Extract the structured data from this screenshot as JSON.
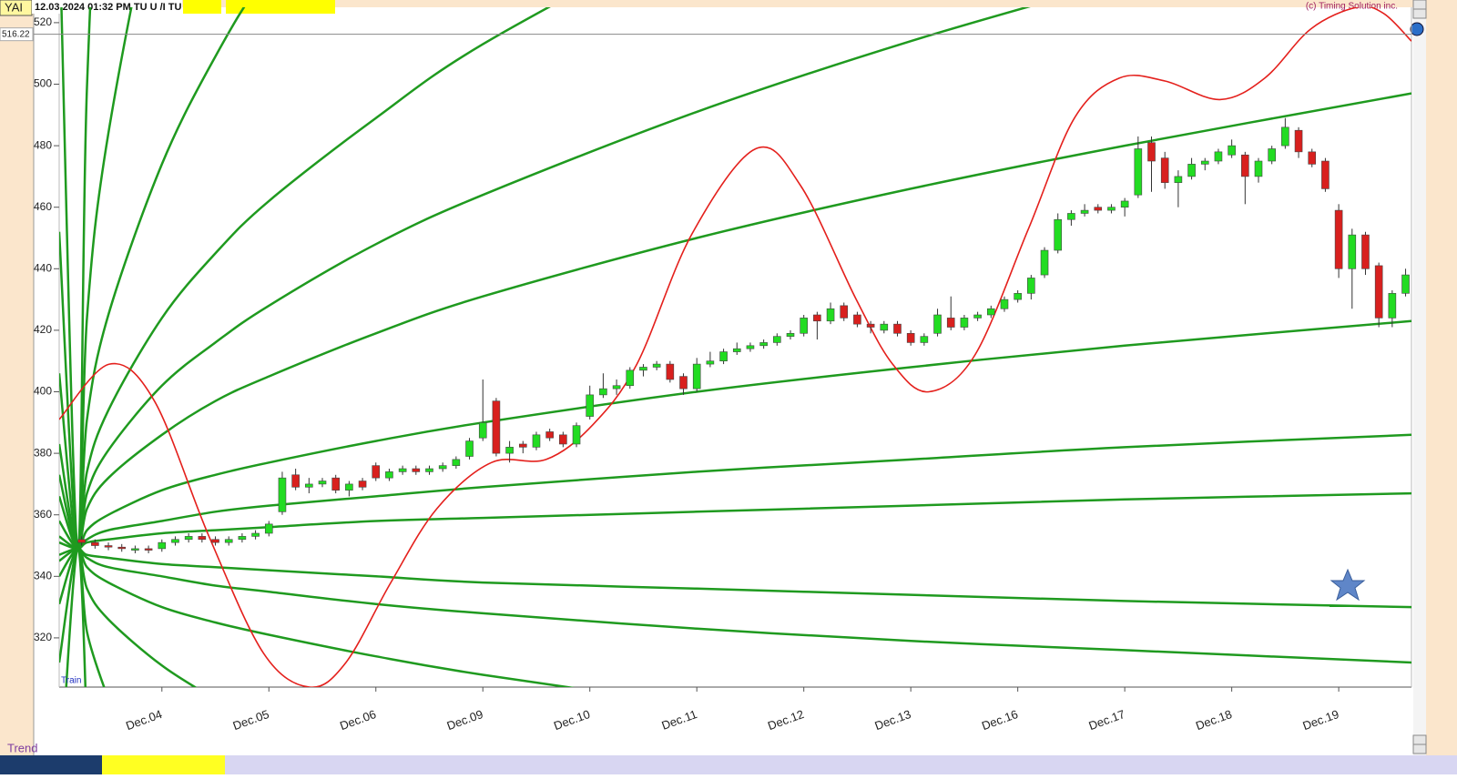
{
  "header": {
    "symbol": "YAI",
    "datetime": "12.03.2024  01:32 PM TU U /I TU",
    "copyright": "(c) Timing Solution inc."
  },
  "footer": {
    "tab": "Trend"
  },
  "chart_data": {
    "type": "candlestick",
    "annotation": "Train",
    "colors": {
      "up": "#22dc22",
      "down": "#d8201e",
      "fan": "#1f9a1f",
      "cycle": "#e4201c"
    },
    "xlim": [
      0.04,
      12.68
    ],
    "xticks": [
      {
        "value": 1,
        "label": "Dec.04"
      },
      {
        "value": 2,
        "label": "Dec.05"
      },
      {
        "value": 3,
        "label": "Dec.06"
      },
      {
        "value": 4,
        "label": "Dec.09"
      },
      {
        "value": 5,
        "label": "Dec.10"
      },
      {
        "value": 6,
        "label": "Dec.11"
      },
      {
        "value": 7,
        "label": "Dec.12"
      },
      {
        "value": 8,
        "label": "Dec.13"
      },
      {
        "value": 9,
        "label": "Dec.16"
      },
      {
        "value": 10,
        "label": "Dec.17"
      },
      {
        "value": 11,
        "label": "Dec.18"
      },
      {
        "value": 12,
        "label": "Dec.19"
      }
    ],
    "ylim": [
      304,
      525
    ],
    "yticks": [
      320,
      340,
      360,
      380,
      400,
      420,
      440,
      460,
      480,
      500,
      520
    ],
    "last_price": 516.22,
    "x": [
      0.25,
      0.375,
      0.5,
      0.625,
      0.75,
      0.875,
      1,
      1.125,
      1.25,
      1.375,
      1.5,
      1.625,
      1.75,
      1.875,
      2,
      2.125,
      2.25,
      2.375,
      2.5,
      2.625,
      2.75,
      2.875,
      3,
      3.125,
      3.25,
      3.375,
      3.5,
      3.625,
      3.75,
      3.875,
      4,
      4.125,
      4.25,
      4.375,
      4.5,
      4.625,
      4.75,
      4.875,
      5,
      5.125,
      5.25,
      5.375,
      5.5,
      5.625,
      5.75,
      5.875,
      6,
      6.125,
      6.25,
      6.375,
      6.5,
      6.625,
      6.75,
      6.875,
      7,
      7.125,
      7.25,
      7.375,
      7.5,
      7.625,
      7.75,
      7.875,
      8,
      8.125,
      8.25,
      8.375,
      8.5,
      8.625,
      8.75,
      8.875,
      9,
      9.125,
      9.25,
      9.375,
      9.5,
      9.625,
      9.75,
      9.875,
      10,
      10.125,
      10.25,
      10.375,
      10.5,
      10.625,
      10.75,
      10.875,
      11,
      11.125,
      11.25,
      11.375,
      11.5,
      11.625,
      11.75,
      11.875,
      12,
      12.125,
      12.25,
      12.375,
      12.5,
      12.625
    ],
    "open": [
      352,
      351,
      350,
      349.5,
      348.5,
      349,
      349,
      351,
      352,
      353,
      352,
      351,
      352,
      353,
      354,
      361,
      373,
      369,
      370,
      372,
      368,
      371,
      376,
      372,
      374,
      375,
      374,
      375,
      376,
      379,
      385,
      397,
      380,
      383,
      382,
      387,
      386,
      383,
      392,
      399,
      401,
      402,
      407,
      408,
      409,
      405,
      401,
      409,
      410,
      413,
      414,
      415,
      416,
      418,
      419,
      425,
      423,
      428,
      425,
      422,
      420,
      422,
      419,
      416,
      419,
      424,
      421,
      424,
      425,
      427,
      430,
      432,
      438,
      446,
      456,
      458,
      460,
      459,
      460,
      464,
      481,
      476,
      468,
      470,
      474,
      475,
      477,
      477,
      470,
      475,
      480,
      485,
      478,
      475,
      459,
      440,
      451,
      441,
      424,
      432
    ],
    "high": [
      353,
      352,
      351,
      350.5,
      350,
      350,
      352,
      353,
      354,
      354,
      353,
      353,
      354,
      355,
      358,
      374,
      375,
      372,
      372,
      373,
      371,
      372,
      377,
      375,
      376,
      376,
      376,
      377,
      379,
      385,
      404,
      398,
      384,
      384,
      387,
      388,
      387,
      390,
      402,
      406,
      404,
      408,
      409,
      410,
      410,
      406,
      411,
      413,
      414,
      416,
      416,
      417,
      419,
      420,
      425,
      426,
      429,
      429,
      426,
      423,
      423,
      423,
      420,
      419,
      427,
      431,
      425,
      426,
      428,
      431,
      433,
      438,
      447,
      458,
      459,
      461,
      461,
      461,
      463,
      483,
      483,
      478,
      472,
      476,
      476,
      479,
      482,
      478,
      476,
      480,
      489,
      486,
      479,
      476,
      461,
      453,
      452,
      442,
      433,
      440
    ],
    "low": [
      350,
      349,
      348.5,
      348,
      347.5,
      347.5,
      348,
      350,
      351,
      351,
      350,
      350,
      351,
      352,
      353,
      360,
      368,
      367,
      369,
      367,
      366,
      368,
      371,
      371,
      373,
      373,
      373,
      374,
      375,
      378,
      384,
      379,
      377,
      380,
      381,
      384,
      382,
      382,
      391,
      398,
      399,
      401,
      405,
      407,
      403,
      399,
      400,
      408,
      409,
      412,
      413,
      414,
      415,
      417,
      418,
      417,
      422,
      423,
      421,
      419,
      419,
      418,
      415,
      415,
      418,
      420,
      420,
      423,
      424,
      426,
      429,
      430,
      437,
      445,
      454,
      457,
      458,
      458,
      457,
      463,
      465,
      466,
      460,
      469,
      472,
      474,
      476,
      461,
      468,
      474,
      479,
      476,
      473,
      465,
      437,
      427,
      438,
      421,
      421,
      431
    ],
    "close": [
      351,
      350,
      349.5,
      349,
      349,
      348.5,
      351,
      352,
      353,
      352,
      351,
      352,
      353,
      354,
      357,
      372,
      369,
      370,
      371,
      368,
      370,
      369,
      372,
      374,
      375,
      374,
      375,
      376,
      378,
      384,
      390,
      380,
      382,
      382,
      386,
      385,
      383,
      389,
      399,
      401,
      402,
      407,
      408,
      409,
      404,
      401,
      409,
      410,
      413,
      414,
      415,
      416,
      418,
      419,
      424,
      423,
      427,
      424,
      422,
      421,
      422,
      419,
      416,
      418,
      425,
      421,
      424,
      425,
      427,
      430,
      432,
      437,
      446,
      456,
      458,
      459,
      459,
      460,
      462,
      479,
      475,
      468,
      470,
      474,
      475,
      478,
      480,
      470,
      475,
      479,
      486,
      478,
      474,
      466,
      440,
      451,
      440,
      424,
      432,
      438
    ],
    "fan": {
      "x": [
        0.04,
        0.21,
        0.3,
        0.5,
        1,
        1.5,
        2,
        3,
        4,
        6,
        8,
        10,
        12.68
      ],
      "lines": [
        [
          554,
          349,
          499,
          619,
          794,
          null,
          null,
          null,
          null,
          null,
          null,
          null,
          null
        ],
        [
          452,
          349,
          424,
          484,
          572,
          634,
          null,
          null,
          null,
          null,
          null,
          null,
          null
        ],
        [
          406,
          349,
          391,
          425,
          474,
          509,
          537,
          583,
          null,
          null,
          null,
          null,
          null
        ],
        [
          383,
          349,
          374,
          394,
          424,
          445,
          462,
          489,
          513,
          551,
          null,
          null,
          null
        ],
        [
          373,
          349,
          367,
          381,
          402,
          416,
          428,
          448,
          464,
          491,
          514,
          534,
          null
        ],
        [
          366,
          349,
          362,
          372,
          386,
          397,
          405,
          419,
          431,
          450,
          466,
          480,
          497
        ],
        [
          358,
          349,
          355,
          360,
          368,
          373,
          377,
          384,
          390,
          400,
          408,
          415,
          423
        ],
        [
          353,
          349,
          352,
          355,
          358,
          361,
          363,
          366,
          369,
          374,
          378,
          382,
          386
        ],
        [
          351,
          349,
          351,
          352,
          354,
          355,
          356,
          358,
          359,
          361,
          363,
          365,
          367
        ],
        [
          347,
          349,
          347,
          346,
          344,
          343,
          342,
          340,
          338,
          336,
          334,
          332,
          330
        ],
        [
          345,
          349,
          346,
          343,
          340,
          337,
          335,
          331,
          328,
          323,
          319,
          316,
          312
        ],
        [
          340,
          349,
          343,
          338,
          330,
          325,
          321,
          314,
          308,
          298,
          null,
          null,
          null
        ],
        [
          331,
          349,
          336,
          326,
          311,
          300,
          null,
          null,
          null,
          null,
          null,
          null,
          null
        ],
        [
          312,
          349,
          322,
          300,
          null,
          null,
          null,
          null,
          null,
          null,
          null,
          null,
          null
        ],
        [
          267,
          349,
          289,
          null,
          null,
          null,
          null,
          null,
          null,
          null,
          null,
          null,
          null
        ]
      ]
    },
    "cycle": {
      "x": [
        0.04,
        0.51,
        0.93,
        1.44,
        1.95,
        2.38,
        2.72,
        3.14,
        3.57,
        4.08,
        4.59,
        5.02,
        5.44,
        5.95,
        6.55,
        6.97,
        7.49,
        7.83,
        8.17,
        8.6,
        9.1,
        9.53,
        9.95,
        10.38,
        10.89,
        11.31,
        11.74,
        12.17,
        12.42,
        12.68
      ],
      "values": [
        391,
        409,
        397,
        353,
        315,
        304,
        312,
        338,
        362,
        377,
        378,
        389,
        409,
        451,
        479,
        467,
        430,
        409,
        400,
        412,
        453,
        489,
        502,
        501,
        495,
        502,
        518,
        525,
        523,
        514
      ]
    }
  }
}
